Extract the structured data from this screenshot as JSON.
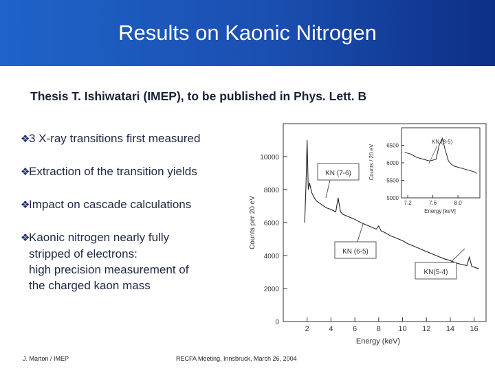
{
  "slide": {
    "title": "Results on Kaonic Nitrogen",
    "subtitle": "Thesis T. Ishiwatari (IMEP), to be published in Phys. Lett. B",
    "bullets": [
      {
        "lines": [
          "3 X-ray transitions first measured"
        ]
      },
      {
        "lines": [
          "Extraction of the transition yields"
        ]
      },
      {
        "lines": [
          "Impact on cascade calculations"
        ]
      },
      {
        "lines": [
          "Kaonic nitrogen nearly fully",
          "stripped of electrons:",
          "high precision measurement of",
          "the charged kaon mass"
        ]
      }
    ],
    "bullet_icon": "diamond-bullet-icon",
    "footer_left": "J. Marton / IMEP",
    "footer_center": "RECFA Meeting, Innsbruck, March 26, 2004"
  },
  "colors": {
    "banner": "#1a4fb0",
    "title_text": "#ffffff",
    "text": "#1f2845"
  },
  "chart_data": [
    {
      "type": "line",
      "xlabel": "Energy (keV)",
      "ylabel": "Counts per 20 eV",
      "xlim": [
        0,
        17
      ],
      "ylim": [
        0,
        12000
      ],
      "x_ticks": [
        2,
        4,
        6,
        8,
        10,
        12,
        14,
        16
      ],
      "y_ticks": [
        0,
        2000,
        4000,
        6000,
        8000,
        10000
      ],
      "series": [
        {
          "x": [
            1.8,
            1.9,
            2.0,
            2.1,
            2.2,
            2.4,
            2.6,
            2.8,
            3.0,
            3.2,
            3.4,
            3.6,
            3.8,
            4.0,
            4.4,
            4.6,
            4.8,
            5.0,
            5.5,
            6.0,
            6.5,
            7.0,
            7.5,
            7.8,
            8.0,
            8.2,
            8.5,
            9.0,
            9.5,
            10.0,
            10.5,
            11.0,
            11.5,
            12.0,
            12.5,
            13.0,
            13.5,
            14.0,
            14.5,
            15.0,
            15.4,
            15.6,
            15.8,
            16.0,
            16.4
          ],
          "y": [
            6000,
            8200,
            11000,
            8000,
            8400,
            7800,
            7500,
            7300,
            7200,
            7100,
            7000,
            6900,
            6850,
            6800,
            6650,
            7500,
            6650,
            6500,
            6350,
            6200,
            6000,
            5850,
            5700,
            5600,
            5800,
            5500,
            5400,
            5200,
            5050,
            4900,
            4700,
            4550,
            4400,
            4250,
            4100,
            3950,
            3800,
            3700,
            3550,
            3450,
            3400,
            3900,
            3350,
            3300,
            3200
          ]
        }
      ],
      "annotations": [
        "KN (7-6)",
        "KN (6-5)",
        "KN(5-4)"
      ]
    },
    {
      "type": "line",
      "xlabel": "Energy [keV]",
      "ylabel": "Counts / 20 eV",
      "xlim": [
        7.1,
        8.35
      ],
      "ylim": [
        5000,
        7000
      ],
      "x_ticks": [
        "7.2",
        "7.6",
        "8.0"
      ],
      "y_ticks": [
        5000,
        5500,
        6000,
        6500
      ],
      "series": [
        {
          "x": [
            7.15,
            7.25,
            7.35,
            7.45,
            7.55,
            7.65,
            7.7,
            7.75,
            7.8,
            7.85,
            7.9,
            7.95,
            8.05,
            8.15,
            8.25,
            8.3
          ],
          "y": [
            6300,
            6250,
            6150,
            6100,
            6050,
            6100,
            6500,
            6700,
            6350,
            6050,
            5950,
            5900,
            5850,
            5800,
            5750,
            5700
          ]
        }
      ],
      "annotations": [
        "KN (8-5)"
      ]
    }
  ]
}
